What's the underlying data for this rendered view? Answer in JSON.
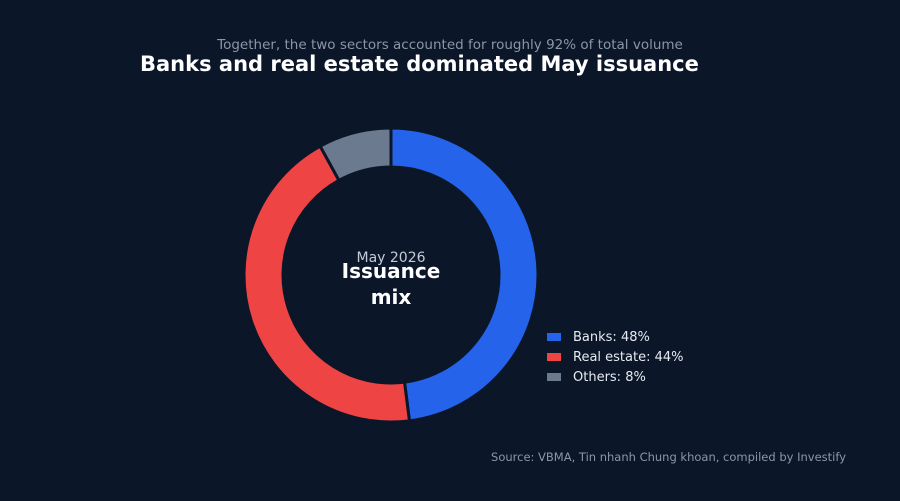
{
  "subtitle": "Together, the two sectors accounted for roughly 92% of total volume",
  "title": "Banks and real estate dominated May issuance",
  "center": {
    "date": "May 2026",
    "label_line1": "Issuance",
    "label_line2": "mix"
  },
  "source": "Source: VBMA, Tin nhanh Chung khoan, compiled by Investify",
  "chart_data": {
    "type": "pie",
    "style": "donut",
    "title": "Banks and real estate dominated May issuance",
    "subtitle": "Together, the two sectors accounted for roughly 92% of total volume",
    "center_text": [
      "May 2026",
      "Issuance mix"
    ],
    "unit": "%",
    "legend_position": "bottom-right",
    "slices": [
      {
        "label": "Banks",
        "value": 48,
        "color": "#2563eb",
        "legend": "Banks: 48%"
      },
      {
        "label": "Real estate",
        "value": 44,
        "color": "#ef4444",
        "legend": "Real estate: 44%"
      },
      {
        "label": "Others",
        "value": 8,
        "color": "#6b7a8f",
        "legend": "Others: 8%"
      }
    ]
  }
}
